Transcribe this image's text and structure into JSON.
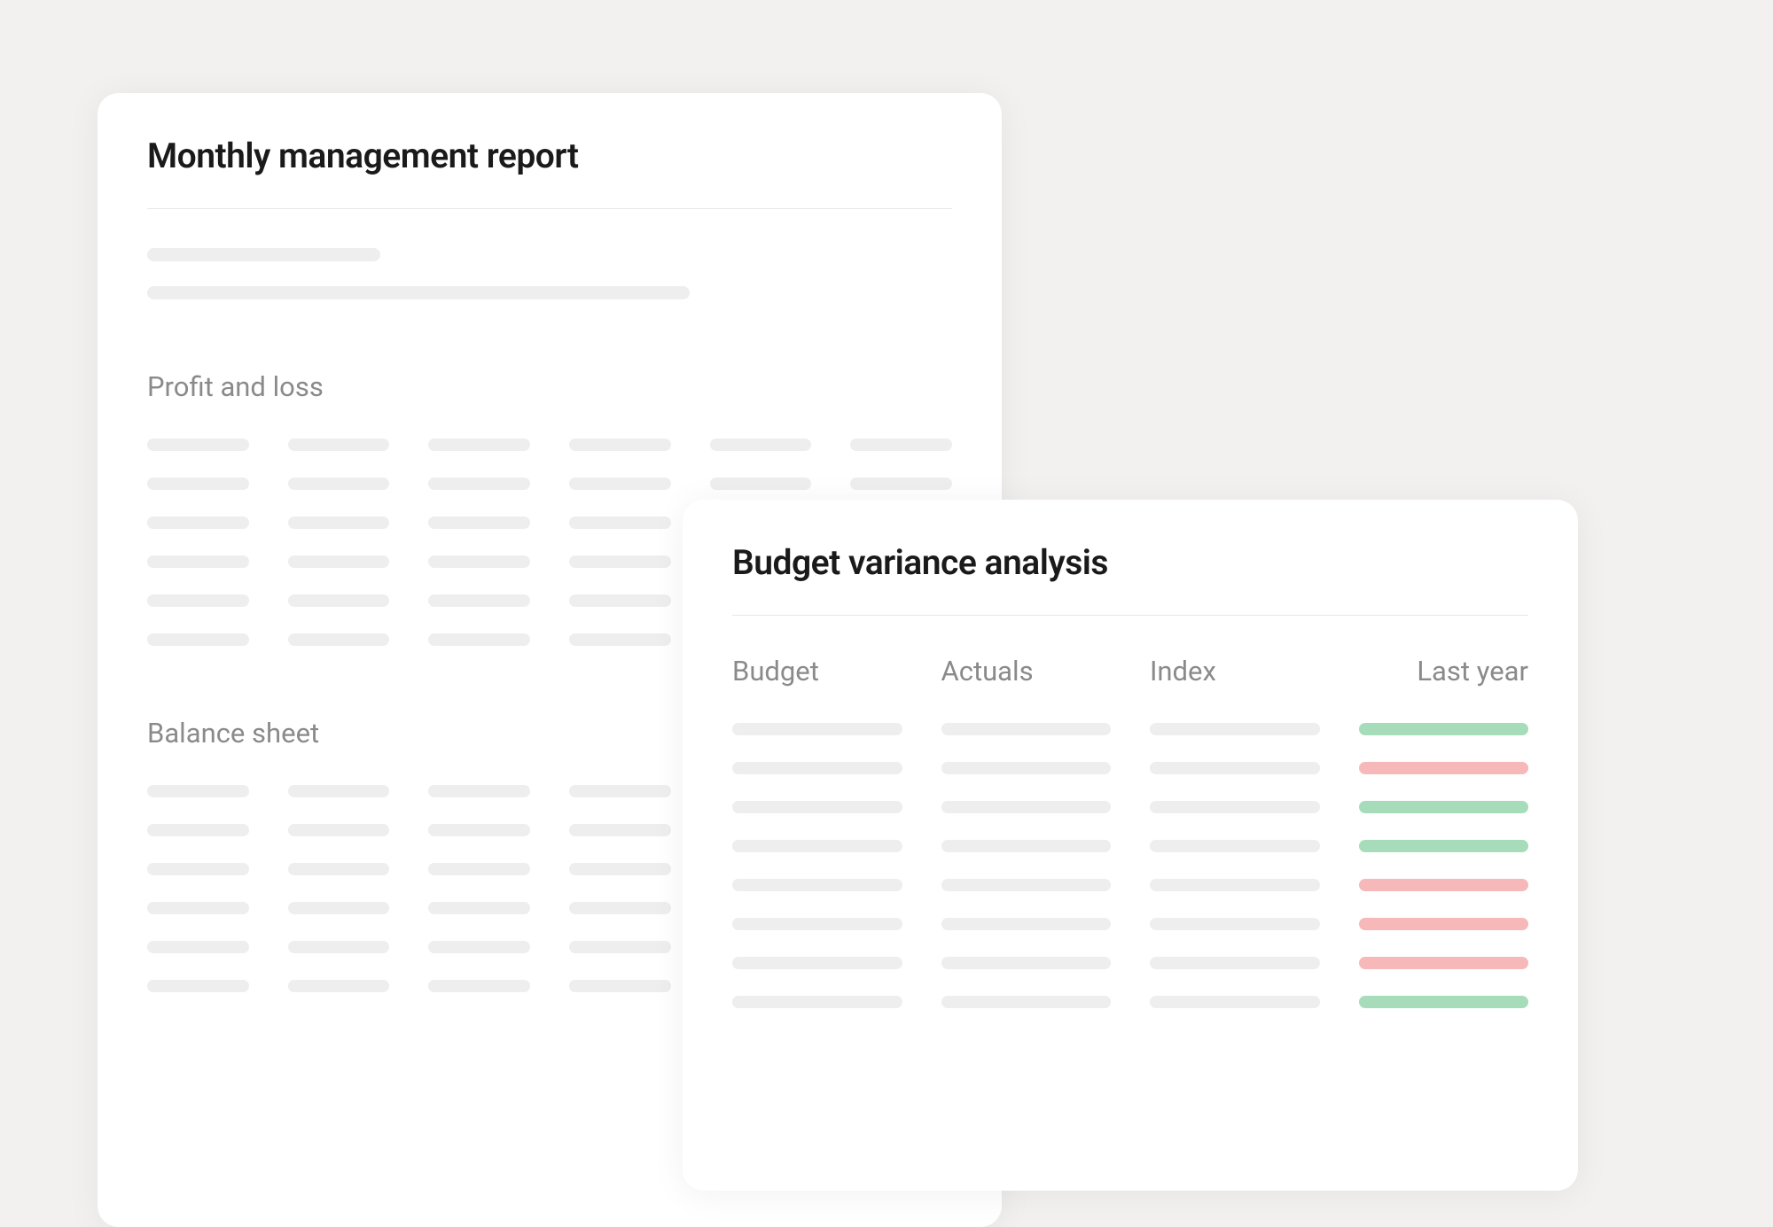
{
  "background_color": "#f2f1f0",
  "card_background": "#ffffff",
  "card_border_radius": 24,
  "skeleton_color": "#eeeeee",
  "divider_color": "#e8e8e8",
  "text_color_primary": "#1a1a1a",
  "text_color_secondary": "#8a8a8a",
  "primary_card": {
    "title": "Monthly management report",
    "title_fontsize": 39,
    "title_fontweight": 600,
    "intro_skeleton_widths": [
      263,
      612
    ],
    "sections": [
      {
        "title": "Profit and loss",
        "title_fontsize": 31,
        "columns": 6,
        "rows": 6
      },
      {
        "title": "Balance sheet",
        "title_fontsize": 31,
        "columns": 6,
        "rows": 6
      }
    ]
  },
  "secondary_card": {
    "title": "Budget variance analysis",
    "title_fontsize": 39,
    "title_fontweight": 600,
    "columns": [
      {
        "label": "Budget"
      },
      {
        "label": "Actuals"
      },
      {
        "label": "Index"
      },
      {
        "label": "Last year"
      }
    ],
    "column_label_fontsize": 31,
    "rows": 8,
    "last_year_status": [
      "positive",
      "negative",
      "positive",
      "positive",
      "negative",
      "negative",
      "negative",
      "positive"
    ],
    "positive_color": "#a6dcb9",
    "negative_color": "#f6b8b8",
    "neutral_color": "#eeeeee"
  }
}
